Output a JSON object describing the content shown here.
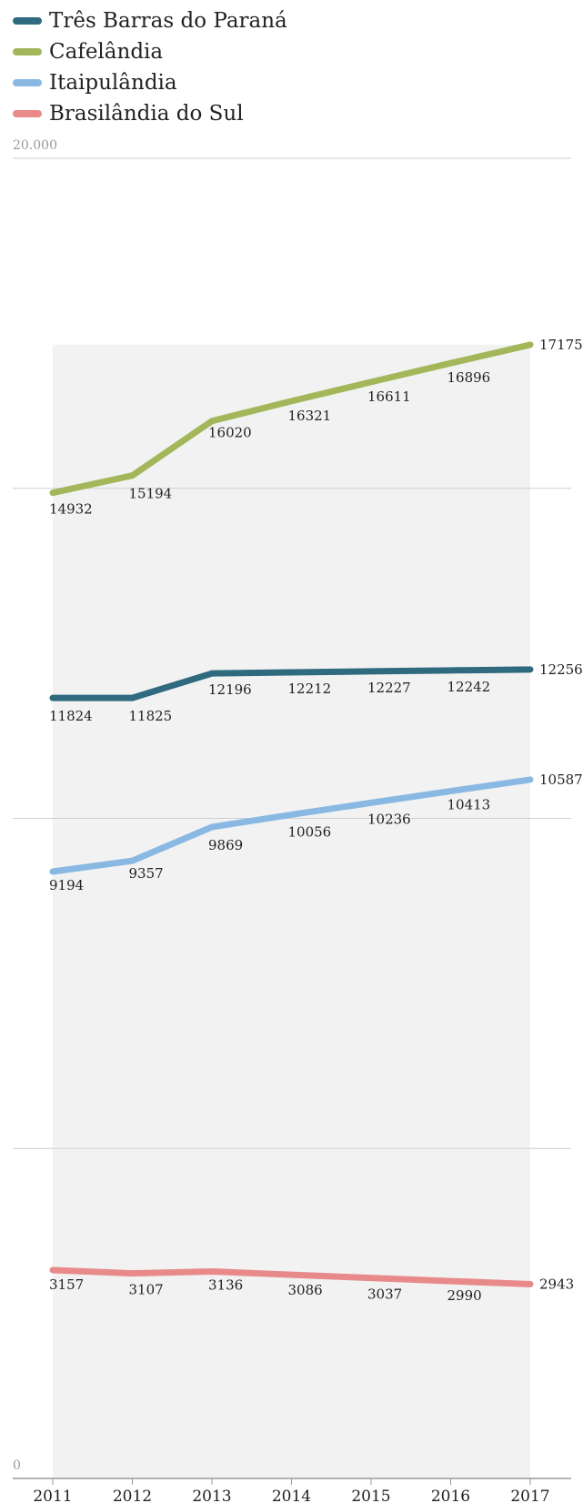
{
  "chart_data": {
    "type": "line",
    "x": [
      "2011",
      "2012",
      "2013",
      "2014",
      "2015",
      "2016",
      "2017"
    ],
    "ylim": [
      0,
      20000
    ],
    "y_ticks": [
      0,
      5000,
      10000,
      15000,
      20000
    ],
    "y_tick_labels": [
      "0",
      "",
      "",
      "",
      "20.000"
    ],
    "grid": true,
    "legend_position": "top-left",
    "series": [
      {
        "name": "Três Barras do Paraná",
        "color": "#2f6a7f",
        "values": [
          11824,
          11825,
          12196,
          12212,
          12227,
          12242,
          12256
        ],
        "labels": [
          "11824",
          "11825",
          "12196",
          "12212",
          "12227",
          "12242",
          "12256"
        ]
      },
      {
        "name": "Cafelândia",
        "color": "#a3b75a",
        "values": [
          14932,
          15194,
          16020,
          16321,
          16611,
          16896,
          17175
        ],
        "labels": [
          "14932",
          "15194",
          "16020",
          "16321",
          "16611",
          "16896",
          "17175"
        ]
      },
      {
        "name": "Itaipulândia",
        "color": "#89b9e3",
        "values": [
          9194,
          9357,
          9869,
          10056,
          10236,
          10413,
          10587
        ],
        "labels": [
          "9194",
          "9357",
          "9869",
          "10056",
          "10236",
          "10413",
          "10587"
        ]
      },
      {
        "name": "Brasilândia do Sul",
        "color": "#e88a8a",
        "values": [
          3157,
          3107,
          3136,
          3086,
          3037,
          2990,
          2943
        ],
        "labels": [
          "3157",
          "3107",
          "3136",
          "3086",
          "3037",
          "2990",
          "2943"
        ]
      }
    ]
  }
}
